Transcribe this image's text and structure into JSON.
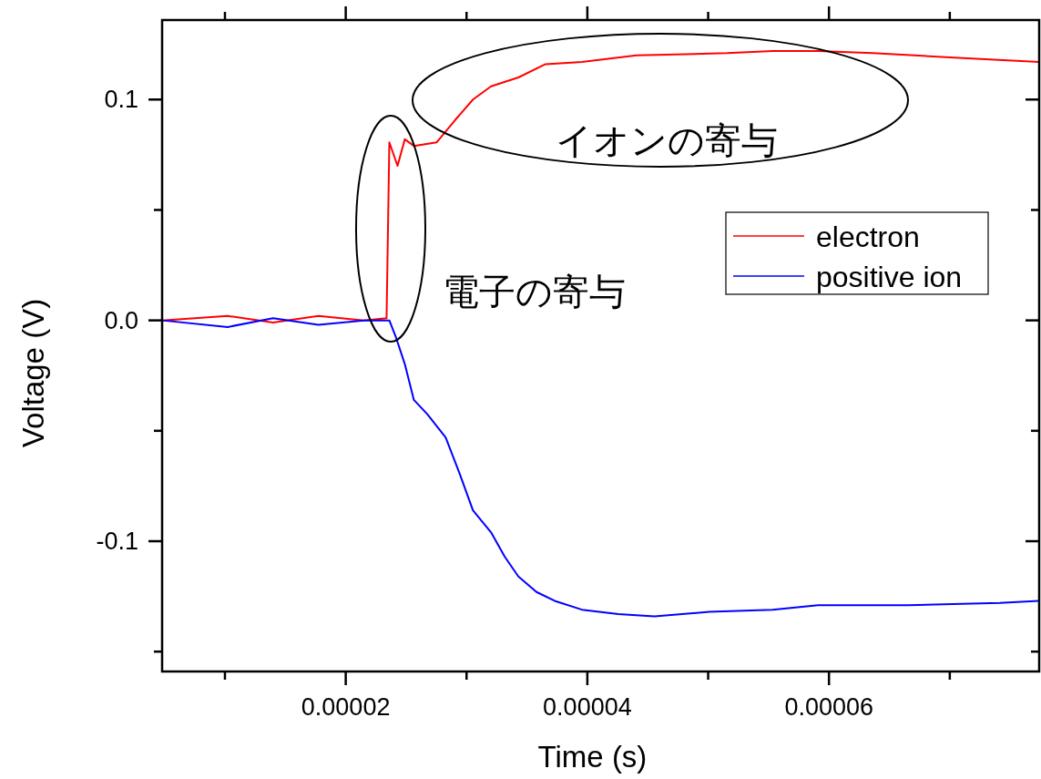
{
  "chart_data": {
    "type": "line",
    "xlabel": "Time (s)",
    "ylabel": "Voltage (V)",
    "xlim": [
      4.8e-06,
      7.74e-05
    ],
    "ylim": [
      -0.159,
      0.136
    ],
    "xticks": [
      {
        "value": 1e-05,
        "label": null
      },
      {
        "value": 2e-05,
        "label": "0.00002"
      },
      {
        "value": 3e-05,
        "label": null
      },
      {
        "value": 4e-05,
        "label": "0.00004"
      },
      {
        "value": 5e-05,
        "label": null
      },
      {
        "value": 6e-05,
        "label": "0.00006"
      },
      {
        "value": 7e-05,
        "label": null
      }
    ],
    "yticks": [
      {
        "value": -0.15,
        "label": null
      },
      {
        "value": -0.1,
        "label": "-0.1"
      },
      {
        "value": -0.05,
        "label": null
      },
      {
        "value": 0,
        "label": "0.0"
      },
      {
        "value": 0.05,
        "label": null
      },
      {
        "value": 0.1,
        "label": "0.1"
      }
    ],
    "legend": "right",
    "grid": false,
    "marker": "none",
    "line_style": "solid",
    "annotations": [
      "イオンの寄与",
      "電子の寄与"
    ],
    "series": [
      {
        "name": "electron",
        "color": "#ff0000",
        "x": [
          4.81e-06,
          1.023e-05,
          1.398e-05,
          1.774e-05,
          2.15e-05,
          2.338e-05,
          2.361e-05,
          2.429e-05,
          2.489e-05,
          2.564e-05,
          2.752e-05,
          2.902e-05,
          3.053e-05,
          3.203e-05,
          3.429e-05,
          3.654e-05,
          3.955e-05,
          4.406e-05,
          5.158e-05,
          5.534e-05,
          5.91e-05,
          6.361e-05,
          7.038e-05,
          7.737e-05
        ],
        "values": [
          0,
          0.002,
          -0.001,
          0.002,
          0,
          0.001,
          0.0806,
          0.07,
          0.082,
          0.079,
          0.0806,
          0.0905,
          0.1,
          0.106,
          0.11,
          0.116,
          0.117,
          0.12,
          0.121,
          0.122,
          0.122,
          0.121,
          0.119,
          0.117
        ]
      },
      {
        "name": "positive ion",
        "color": "#0000ff",
        "x": [
          4.81e-06,
          1.023e-05,
          1.398e-05,
          1.774e-05,
          2.15e-05,
          2.361e-05,
          2.414e-05,
          2.489e-05,
          2.564e-05,
          2.677e-05,
          2.827e-05,
          2.94e-05,
          3.053e-05,
          3.203e-05,
          3.316e-05,
          3.429e-05,
          3.579e-05,
          3.729e-05,
          3.955e-05,
          4.256e-05,
          4.556e-05,
          5.008e-05,
          5.534e-05,
          5.91e-05,
          6.662e-05,
          7.414e-05,
          7.737e-05
        ],
        "values": [
          0,
          -0.003,
          0.001,
          -0.002,
          0,
          0,
          -0.0074,
          -0.0198,
          -0.036,
          -0.0426,
          -0.053,
          -0.069,
          -0.086,
          -0.096,
          -0.107,
          -0.116,
          -0.123,
          -0.127,
          -0.131,
          -0.133,
          -0.134,
          -0.132,
          -0.131,
          -0.129,
          -0.129,
          -0.128,
          -0.127
        ]
      }
    ]
  }
}
